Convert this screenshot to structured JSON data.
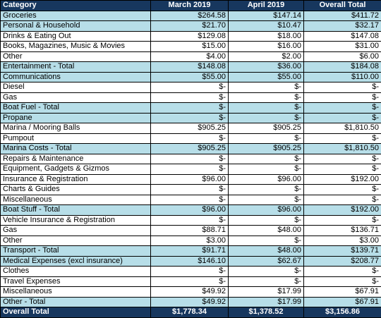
{
  "table": {
    "header": [
      "Category",
      "March 2019",
      "April 2019",
      "Overall Total"
    ],
    "rows": [
      {
        "cells": [
          "Groceries",
          "$264.58",
          "$147.14",
          "$411.72"
        ],
        "highlight": true
      },
      {
        "cells": [
          "Personal & Household",
          "$21.70",
          "$10.47",
          "$32.17"
        ],
        "highlight": true
      },
      {
        "cells": [
          "Drinks & Eating Out",
          "$129.08",
          "$18.00",
          "$147.08"
        ],
        "highlight": false
      },
      {
        "cells": [
          "Books, Magazines, Music & Movies",
          "$15.00",
          "$16.00",
          "$31.00"
        ],
        "highlight": false
      },
      {
        "cells": [
          "Other",
          "$4.00",
          "$2.00",
          "$6.00"
        ],
        "highlight": false
      },
      {
        "cells": [
          "Entertainment - Total",
          "$148.08",
          "$36.00",
          "$184.08"
        ],
        "highlight": true
      },
      {
        "cells": [
          "Communications",
          "$55.00",
          "$55.00",
          "$110.00"
        ],
        "highlight": true
      },
      {
        "cells": [
          "Diesel",
          "$-",
          "$-",
          "$-"
        ],
        "highlight": false
      },
      {
        "cells": [
          "Gas",
          "$-",
          "$-",
          "$-"
        ],
        "highlight": false
      },
      {
        "cells": [
          "Boat Fuel - Total",
          "$-",
          "$-",
          "$-"
        ],
        "highlight": true
      },
      {
        "cells": [
          "Propane",
          "$-",
          "$-",
          "$-"
        ],
        "highlight": true
      },
      {
        "cells": [
          "Marina / Mooring Balls",
          "$905.25",
          "$905.25",
          "$1,810.50"
        ],
        "highlight": false
      },
      {
        "cells": [
          "Pumpout",
          "$-",
          "$-",
          "$-"
        ],
        "highlight": false
      },
      {
        "cells": [
          "Marina Costs - Total",
          "$905.25",
          "$905.25",
          "$1,810.50"
        ],
        "highlight": true
      },
      {
        "cells": [
          "Repairs & Maintenance",
          "$-",
          "$-",
          "$-"
        ],
        "highlight": false
      },
      {
        "cells": [
          "Equipment, Gadgets & Gizmos",
          "$-",
          "$-",
          "$-"
        ],
        "highlight": false
      },
      {
        "cells": [
          "Insurance & Registration",
          "$96.00",
          "$96.00",
          "$192.00"
        ],
        "highlight": false
      },
      {
        "cells": [
          "Charts & Guides",
          "$-",
          "$-",
          "$-"
        ],
        "highlight": false
      },
      {
        "cells": [
          "Miscellaneous",
          "$-",
          "$-",
          "$-"
        ],
        "highlight": false
      },
      {
        "cells": [
          "Boat Stuff - Total",
          "$96.00",
          "$96.00",
          "$192.00"
        ],
        "highlight": true
      },
      {
        "cells": [
          "Vehicle Insurance & Registration",
          "$-",
          "$-",
          "$-"
        ],
        "highlight": false
      },
      {
        "cells": [
          "Gas",
          "$88.71",
          "$48.00",
          "$136.71"
        ],
        "highlight": false
      },
      {
        "cells": [
          "Other",
          "$3.00",
          "$-",
          "$3.00"
        ],
        "highlight": false
      },
      {
        "cells": [
          "Transport - Total",
          "$91.71",
          "$48.00",
          "$139.71"
        ],
        "highlight": true
      },
      {
        "cells": [
          "Medical Expenses (excl insurance)",
          "$146.10",
          "$62.67",
          "$208.77"
        ],
        "highlight": true
      },
      {
        "cells": [
          "Clothes",
          "$-",
          "$-",
          "$-"
        ],
        "highlight": false
      },
      {
        "cells": [
          "Travel Expenses",
          "$-",
          "$-",
          "$-"
        ],
        "highlight": false
      },
      {
        "cells": [
          "Miscellaneous",
          "$49.92",
          "$17.99",
          "$67.91"
        ],
        "highlight": false
      },
      {
        "cells": [
          "Other - Total",
          "$49.92",
          "$17.99",
          "$67.91"
        ],
        "highlight": true
      }
    ],
    "footer": [
      "Overall Total",
      "$1,778.34",
      "$1,378.52",
      "$3,156.86"
    ]
  }
}
